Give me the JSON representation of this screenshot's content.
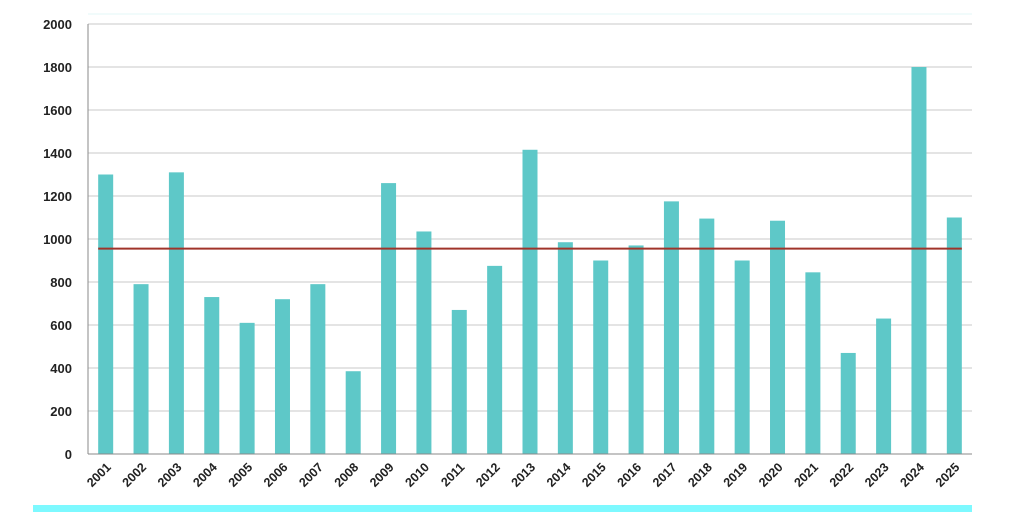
{
  "chart_data": {
    "type": "bar",
    "categories": [
      "2001",
      "2002",
      "2003",
      "2004",
      "2005",
      "2006",
      "2007",
      "2008",
      "2009",
      "2010",
      "2011",
      "2012",
      "2013",
      "2014",
      "2015",
      "2016",
      "2017",
      "2018",
      "2019",
      "2020",
      "2021",
      "2022",
      "2023",
      "2024",
      "2025"
    ],
    "series": [
      {
        "values": [
          1300,
          790,
          1310,
          730,
          610,
          720,
          790,
          385,
          1260,
          1035,
          670,
          875,
          1415,
          985,
          900,
          970,
          1175,
          1095,
          900,
          1085,
          845,
          470,
          630,
          1800,
          1100
        ],
        "color": "#5ec8c8"
      }
    ],
    "reference_line": {
      "value": 955,
      "color": "#a0342a"
    },
    "ylim": [
      0,
      2000
    ],
    "yticks": [
      "0",
      "200",
      "400",
      "600",
      "800",
      "1000",
      "1200",
      "1400",
      "1600",
      "1800",
      "2000"
    ],
    "grid": true,
    "accent_color": "#7df9ff"
  }
}
